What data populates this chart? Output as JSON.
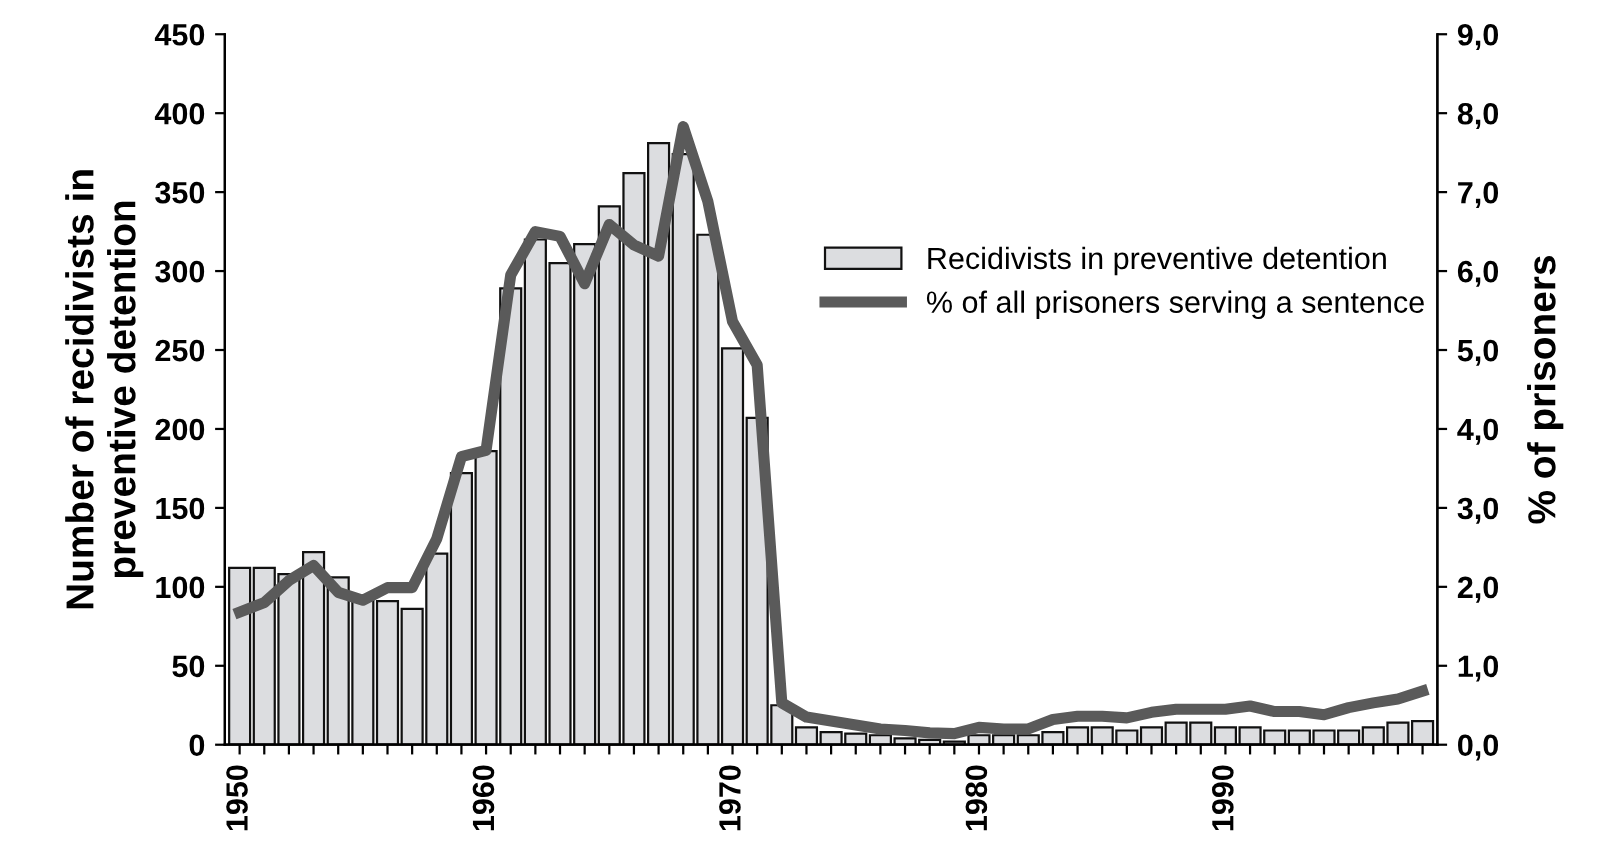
{
  "chart_data": {
    "type": "bar",
    "ylabel": "Number of recidivists in\npreventive detention",
    "y2label": "% of prisoners",
    "categories": [
      "1950",
      null,
      null,
      null,
      null,
      null,
      null,
      null,
      null,
      null,
      "1960",
      null,
      null,
      null,
      null,
      null,
      null,
      null,
      null,
      null,
      "1970",
      null,
      null,
      null,
      null,
      null,
      null,
      null,
      null,
      null,
      "1980",
      null,
      null,
      null,
      null,
      null,
      null,
      null,
      null,
      null,
      "1990",
      null,
      null,
      null,
      null,
      null,
      null,
      null,
      null
    ],
    "series": [
      {
        "name": "Recidivists in preventive detention",
        "color": "#dcdde0",
        "values": [
          112,
          112,
          108,
          122,
          106,
          92,
          91,
          86,
          121,
          172,
          186,
          289,
          320,
          305,
          317,
          341,
          362,
          381,
          374,
          323,
          251,
          207,
          25,
          11,
          8,
          7,
          6,
          4,
          3,
          2,
          6,
          6,
          6,
          8,
          11,
          11,
          9,
          11,
          14,
          14,
          11,
          11,
          9,
          9,
          9,
          9,
          11,
          14,
          15
        ]
      },
      {
        "name": "% of all prisoners serving a sentence",
        "type": "line",
        "axis": "y2",
        "color": "#5a5a5a",
        "values": [
          1.68,
          1.8,
          2.08,
          2.27,
          1.93,
          1.83,
          1.99,
          1.99,
          2.61,
          3.65,
          3.73,
          5.95,
          6.5,
          6.44,
          5.84,
          6.59,
          6.33,
          6.19,
          7.83,
          6.88,
          5.36,
          4.81,
          0.53,
          0.35,
          0.3,
          0.25,
          0.2,
          0.18,
          0.15,
          0.14,
          0.22,
          0.2,
          0.2,
          0.32,
          0.36,
          0.36,
          0.34,
          0.41,
          0.45,
          0.45,
          0.45,
          0.49,
          0.42,
          0.42,
          0.38,
          0.47,
          0.53,
          0.58,
          0.68
        ]
      }
    ],
    "ylim": [
      0,
      450
    ],
    "yticks": [
      0,
      50,
      100,
      150,
      200,
      250,
      300,
      350,
      400,
      450
    ],
    "y2lim": [
      0,
      9
    ],
    "y2ticks": [
      {
        "value": 0,
        "label": "0,0"
      },
      {
        "value": 1,
        "label": "1,0"
      },
      {
        "value": 2,
        "label": "2,0"
      },
      {
        "value": 3,
        "label": "3,0"
      },
      {
        "value": 4,
        "label": "4,0"
      },
      {
        "value": 5,
        "label": "5,0"
      },
      {
        "value": 6,
        "label": "6,0"
      },
      {
        "value": 7,
        "label": "7,0"
      },
      {
        "value": 8,
        "label": "8,0"
      },
      {
        "value": 9,
        "label": "9,0"
      }
    ],
    "legend": "center right",
    "grid": false,
    "line_style": "solid",
    "marker": "none"
  }
}
